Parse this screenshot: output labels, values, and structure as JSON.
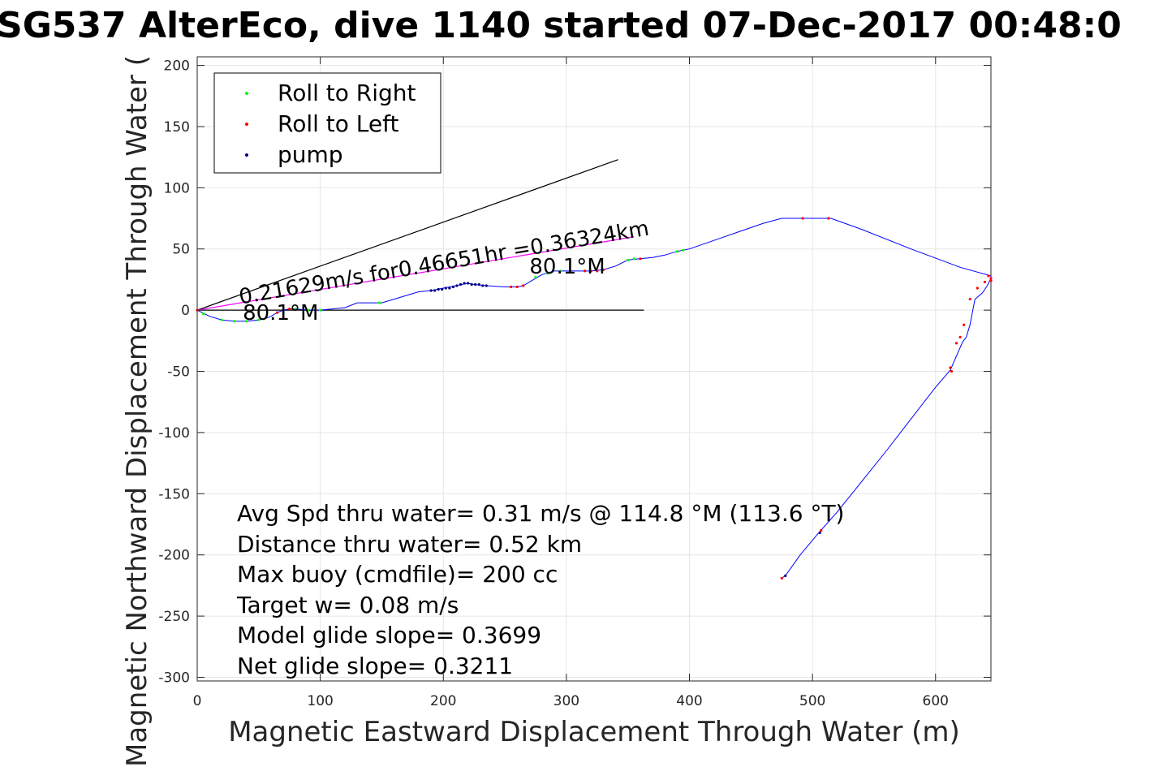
{
  "chart_data": {
    "type": "line",
    "title": "SG537 AlterEco, dive 1140 started 07-Dec-2017 00:48:0",
    "xlabel": "Magnetic Eastward Displacement Through Water (m)",
    "ylabel": "Magnetic Northward Displacement Through Water (",
    "xlim": [
      0,
      645
    ],
    "ylim": [
      -303,
      207
    ],
    "xticks": [
      0,
      100,
      200,
      300,
      400,
      500,
      600
    ],
    "yticks": [
      -300,
      -250,
      -200,
      -150,
      -100,
      -50,
      0,
      50,
      100,
      150,
      200
    ],
    "grid": true,
    "legend_position": "top-left",
    "legend": [
      {
        "label": "Roll to Right",
        "color": "#00ff00"
      },
      {
        "label": "Roll to Left",
        "color": "#ff0000"
      },
      {
        "label": "pump",
        "color": "#000080"
      }
    ],
    "colors": {
      "track": "#0000ff",
      "current": "#ff00ff",
      "heading": "#000000",
      "right": "#00ff00",
      "left": "#ff0000",
      "pump": "#000080"
    },
    "track": {
      "name": "",
      "x": [
        0,
        10,
        20,
        30,
        40,
        50,
        55,
        60,
        65,
        70,
        75,
        80,
        90,
        100,
        110,
        120,
        130,
        140,
        150,
        160,
        170,
        180,
        190,
        200,
        210,
        215,
        220,
        225,
        235,
        250,
        260,
        265,
        270,
        280,
        290,
        300,
        310,
        320,
        330,
        340,
        350,
        360,
        370,
        380,
        390,
        400,
        420,
        440,
        460,
        475,
        495,
        515,
        540,
        580,
        620,
        645,
        645,
        642,
        638,
        632,
        628,
        625,
        622,
        618,
        612,
        600,
        580,
        560,
        540,
        520,
        505,
        490,
        478,
        475
      ],
      "y": [
        0,
        -5,
        -8,
        -9,
        -9,
        -8,
        -7,
        -5,
        -2,
        0,
        1,
        1,
        0,
        0,
        1,
        2,
        6,
        6,
        6,
        9,
        12,
        15,
        16,
        18,
        20,
        21,
        22,
        21,
        20,
        19,
        19,
        20,
        23,
        29,
        32,
        32,
        32,
        32,
        33,
        36,
        41,
        42,
        43,
        45,
        48,
        50,
        57,
        64,
        71,
        75,
        75,
        75,
        66,
        50,
        35,
        28,
        26,
        20,
        14,
        9,
        -12,
        -22,
        -26,
        -35,
        -49,
        -63,
        -89,
        -115,
        -140,
        -165,
        -182,
        -200,
        -217,
        -219
      ]
    },
    "roll_right_points": {
      "x": [
        5,
        20,
        30,
        40,
        50,
        80,
        90,
        100,
        148,
        275,
        285,
        295,
        350,
        355,
        390,
        395
      ],
      "y": [
        -3,
        -8,
        -9,
        -9,
        -8,
        1,
        0,
        0,
        6,
        27,
        30,
        32,
        41,
        42,
        48,
        49
      ]
    },
    "roll_left_points": {
      "x": [
        0,
        65,
        75,
        255,
        260,
        265,
        315,
        320,
        325,
        330,
        360,
        492,
        513,
        612,
        613,
        617,
        620,
        623,
        628,
        634,
        640,
        643,
        645,
        645,
        507,
        475
      ],
      "y": [
        0,
        -2,
        1,
        19,
        19,
        20,
        32,
        32,
        32,
        33,
        42,
        75,
        75,
        -47,
        -50,
        -27,
        -22,
        -12,
        9,
        18,
        23,
        28,
        26,
        24,
        -180,
        -219
      ]
    },
    "pump_points": {
      "x": [
        190,
        193,
        196,
        199,
        202,
        205,
        208,
        211,
        214,
        217,
        220,
        223,
        226,
        229,
        232,
        235,
        478,
        506
      ],
      "y": [
        16,
        16,
        17,
        17,
        18,
        18,
        19,
        20,
        21,
        22,
        22,
        21,
        21,
        21,
        20,
        20,
        -217,
        -182
      ]
    },
    "current_line": {
      "x": [
        0,
        355
      ],
      "y": [
        0,
        60
      ]
    },
    "heading_lines": [
      {
        "x": [
          0,
          342
        ],
        "y": [
          0,
          123
        ]
      },
      {
        "x": [
          0,
          363
        ],
        "y": [
          0,
          0
        ]
      }
    ],
    "current_label": {
      "text": "0.21629m/s for0.46651hr =0.36324km",
      "x": 35,
      "y": 5,
      "angle_deg": -9.6
    },
    "heading_labels": [
      {
        "text": "80.1°M",
        "x": 37,
        "y": -8
      },
      {
        "text": "80.1°M",
        "x": 270,
        "y": 30
      }
    ],
    "annotations": [
      "Avg Spd thru water=  0.31 m/s @ 114.8 °M (113.6 °T)",
      "Distance thru water=  0.52 km",
      "Max buoy (cmdfile)= 200 cc",
      "Target w= 0.08 m/s",
      "Model glide slope= 0.3699",
      "Net glide slope= 0.3211"
    ]
  }
}
